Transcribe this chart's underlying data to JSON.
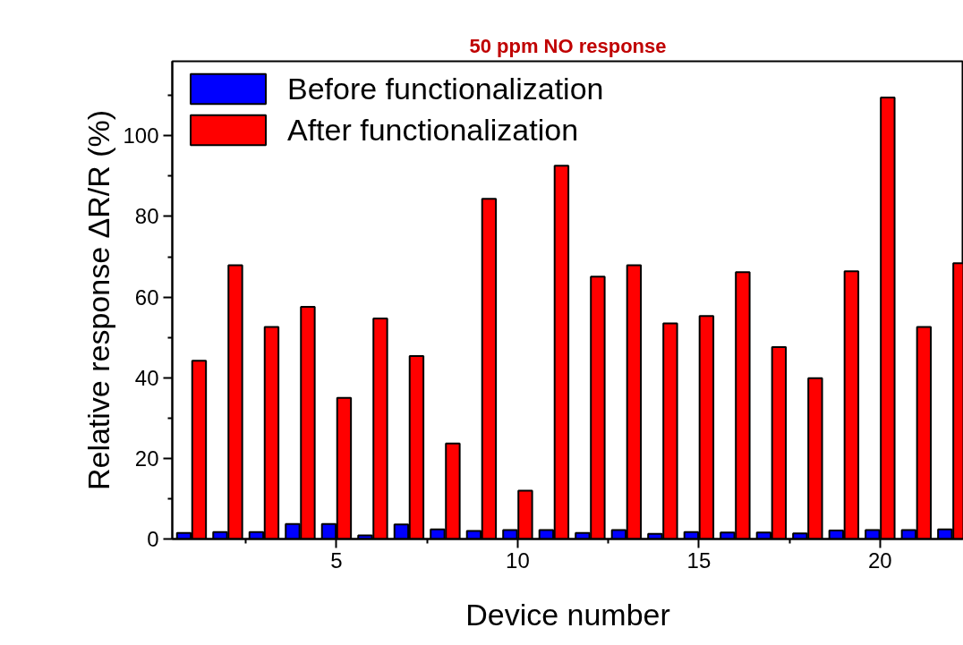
{
  "chart_data": {
    "type": "bar",
    "title": "50 ppm NO response",
    "xlabel": "Device number",
    "ylabel": "Relative response ΔR/R (%)",
    "x": [
      1,
      2,
      3,
      4,
      5,
      6,
      7,
      8,
      9,
      10,
      11,
      12,
      13,
      14,
      15,
      16,
      17,
      18,
      19,
      20,
      21,
      22
    ],
    "series": [
      {
        "name": "Before functionalization",
        "color": "#0000ff",
        "values": [
          1.5,
          1.7,
          1.7,
          3.7,
          3.7,
          0.9,
          3.6,
          2.4,
          2.0,
          2.2,
          2.2,
          1.5,
          2.2,
          1.3,
          1.7,
          1.6,
          1.6,
          1.4,
          2.1,
          2.2,
          2.2,
          2.4
        ]
      },
      {
        "name": "After functionalization",
        "color": "#ff0000",
        "values": [
          44.2,
          67.9,
          52.6,
          57.6,
          35.0,
          54.7,
          45.4,
          23.7,
          84.4,
          12.0,
          92.6,
          65.1,
          67.9,
          53.5,
          55.3,
          66.2,
          47.6,
          39.9,
          66.4,
          109.5,
          52.6,
          68.4
        ]
      }
    ],
    "xlim": [
      0.47,
      22.3
    ],
    "ylim": [
      0,
      118.5
    ],
    "xticks": [
      {
        "value": 2.5,
        "label": null
      },
      5,
      {
        "value": 7.5,
        "label": null
      },
      10,
      {
        "value": 12.5,
        "label": null
      },
      15,
      {
        "value": 17.5,
        "label": null
      },
      20
    ],
    "yticks": [
      0,
      {
        "value": 10,
        "label": null
      },
      20,
      {
        "value": 30,
        "label": null
      },
      40,
      {
        "value": 50,
        "label": null
      },
      60,
      {
        "value": 70,
        "label": null
      },
      80,
      {
        "value": 90,
        "label": null
      },
      100,
      {
        "value": 110,
        "label": null
      }
    ],
    "grid": false,
    "legend": "top left"
  }
}
